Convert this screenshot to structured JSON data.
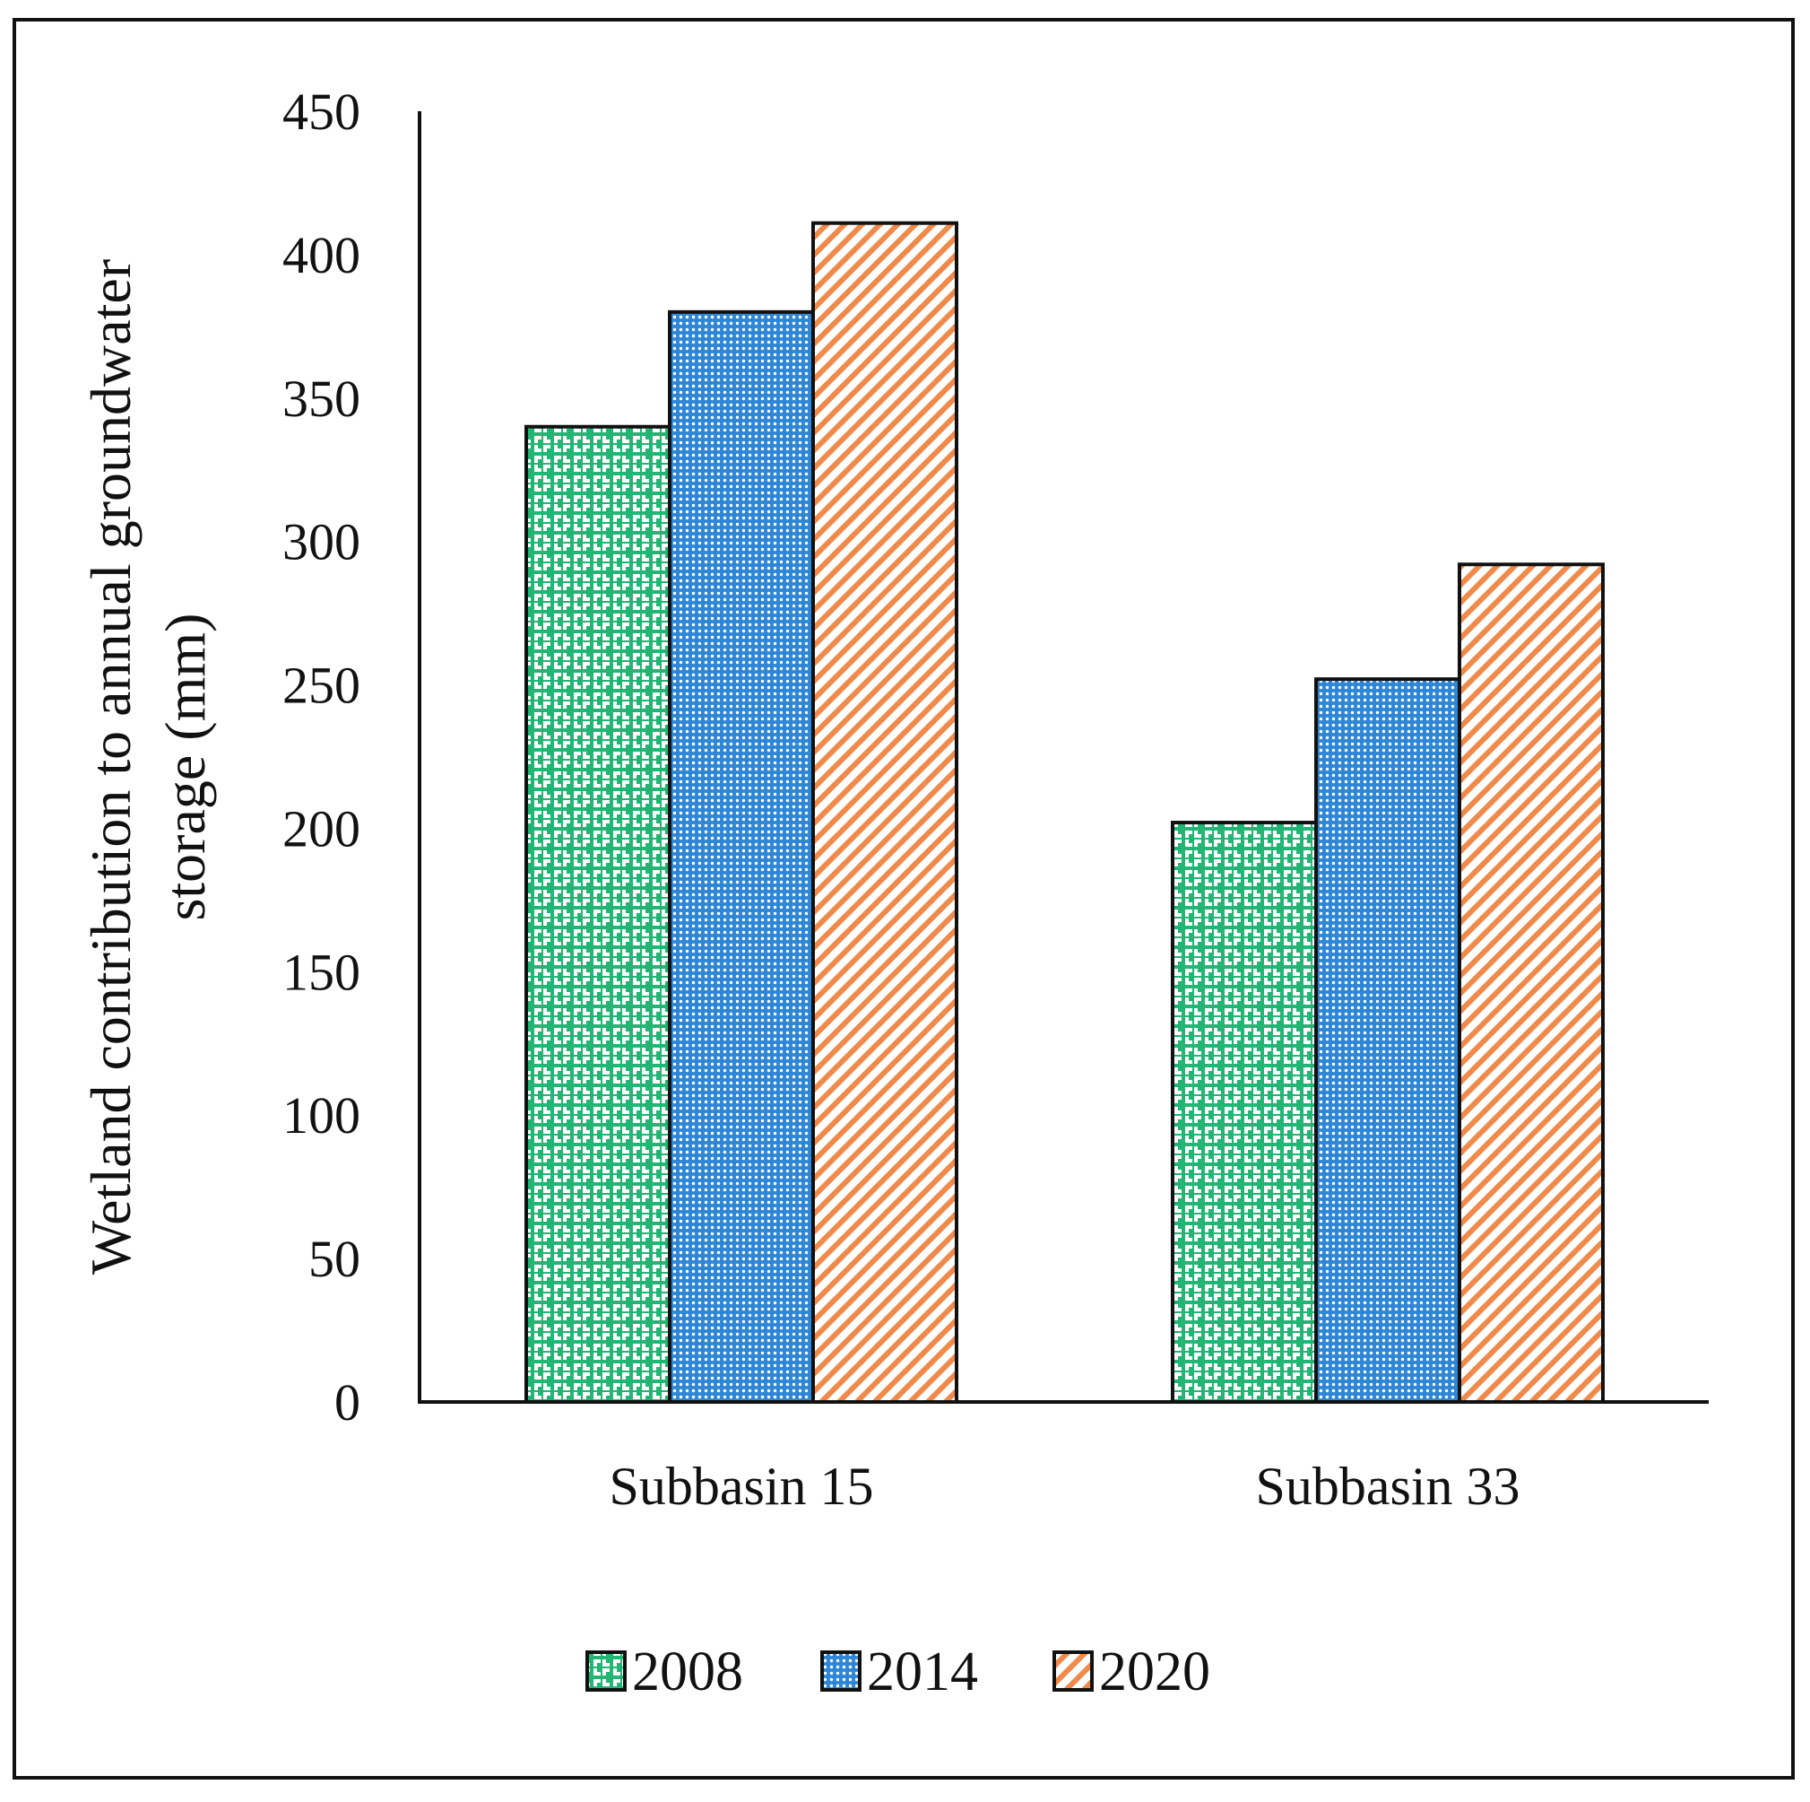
{
  "chart_data": {
    "type": "bar",
    "title": "",
    "xlabel": "",
    "ylabel_lines": [
      "Wetland contribution to annual groundwater",
      "storage (mm)"
    ],
    "categories": [
      "Subbasin 15",
      "Subbasin 33"
    ],
    "series": [
      {
        "name": "2008",
        "values": [
          340,
          202
        ],
        "color": "#22b573",
        "pattern": "interlocking-cross"
      },
      {
        "name": "2014",
        "values": [
          380,
          252
        ],
        "color": "#2e86d6",
        "pattern": "dotted-grid"
      },
      {
        "name": "2020",
        "values": [
          411,
          292
        ],
        "color": "#f08a4b",
        "pattern": "diagonal-hatch"
      }
    ],
    "ylim": [
      0,
      450
    ],
    "yticks": [
      "0",
      "50",
      "100",
      "150",
      "200",
      "250",
      "300",
      "350",
      "400",
      "450"
    ],
    "grid": false,
    "legend_position": "bottom-center"
  }
}
